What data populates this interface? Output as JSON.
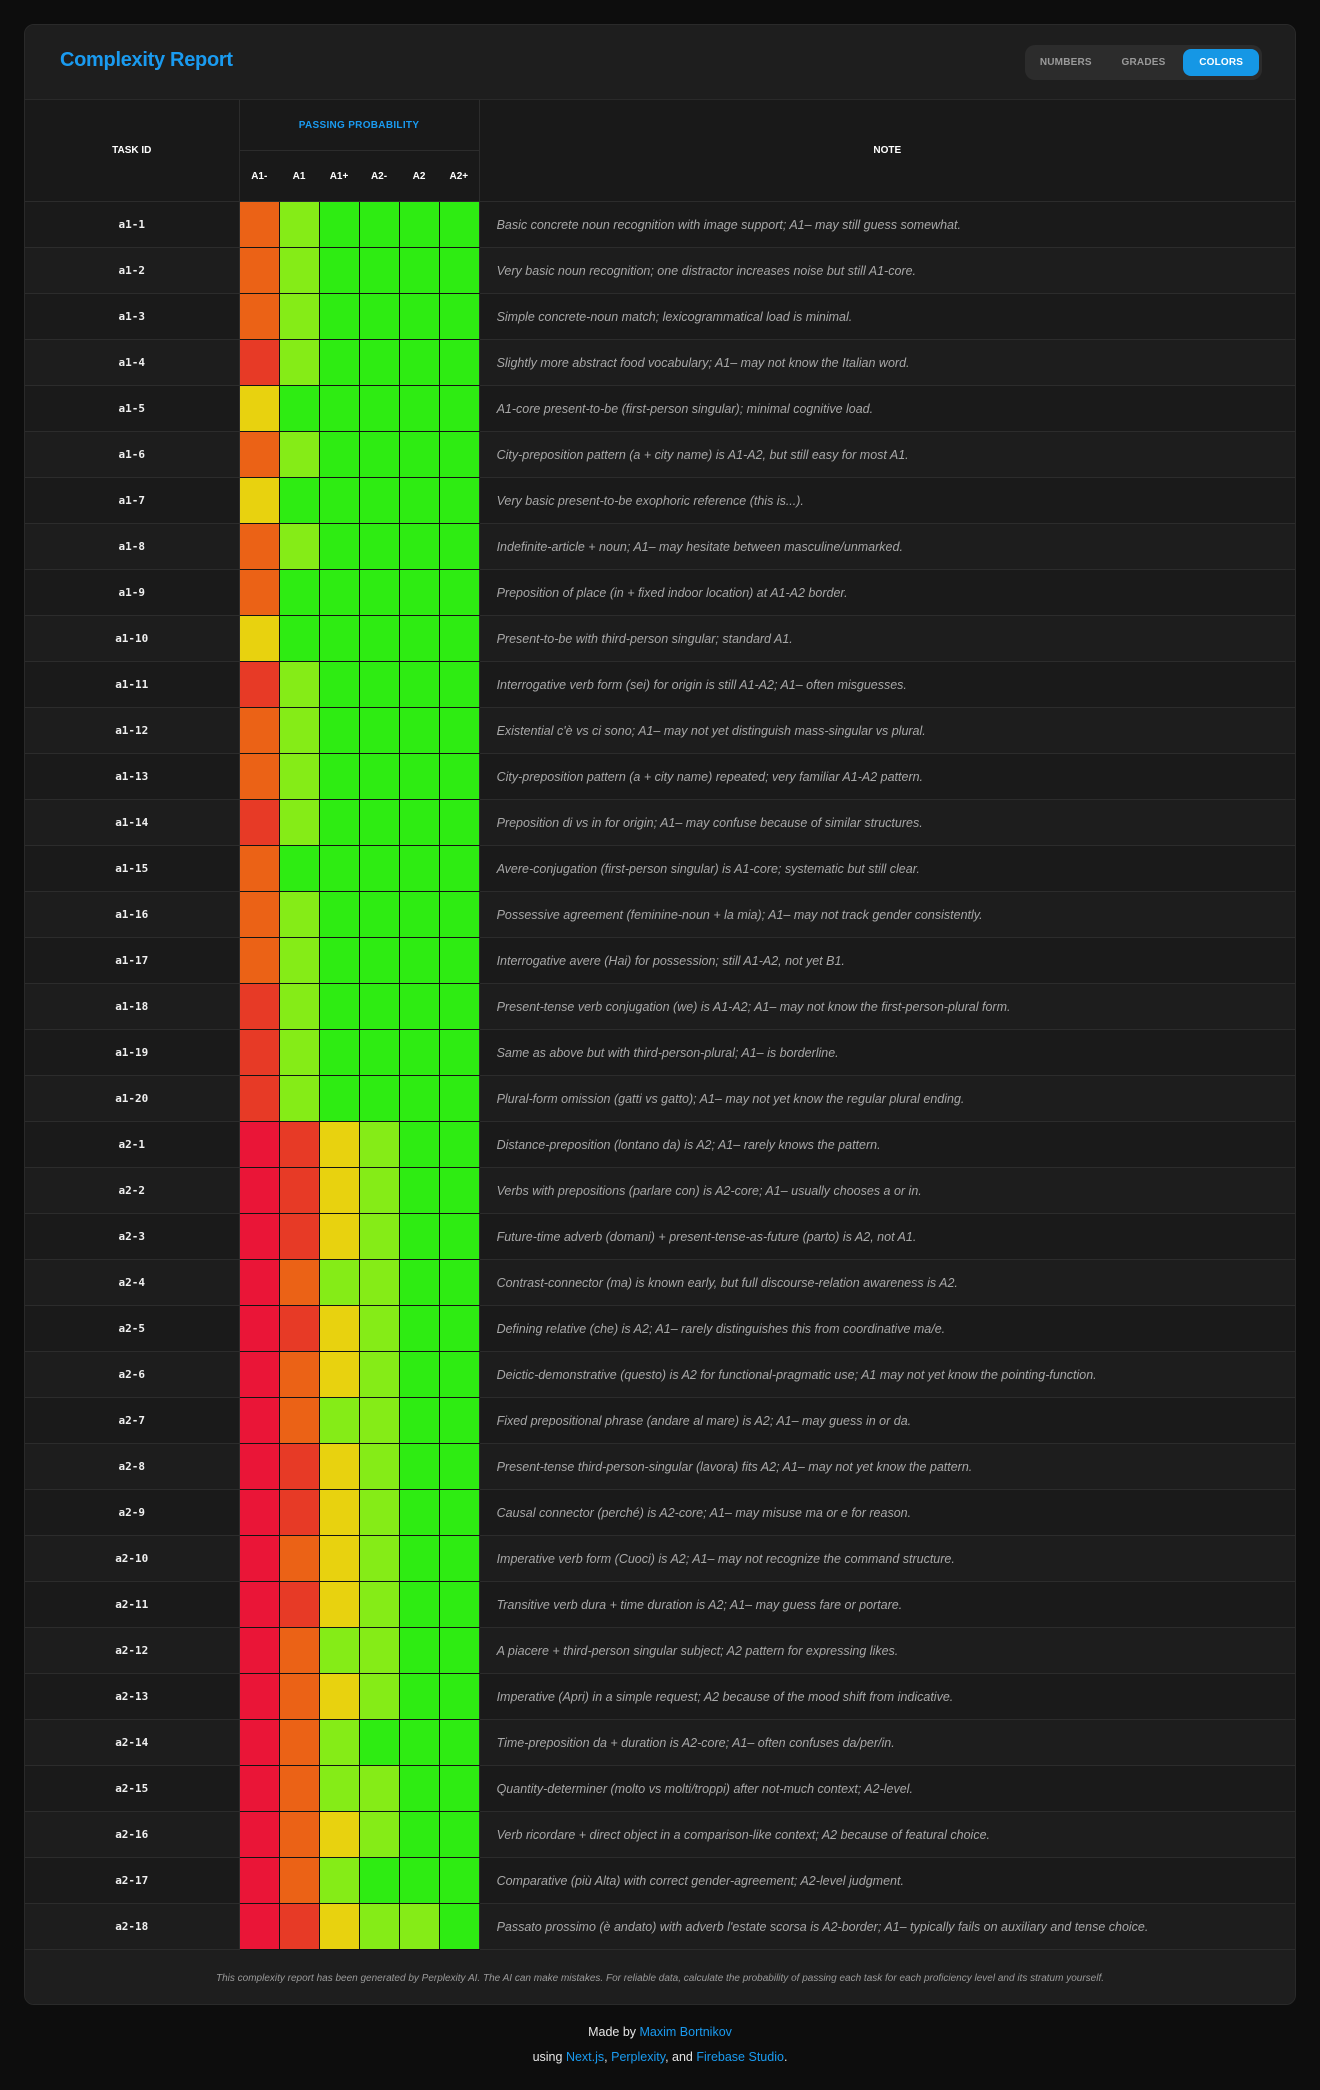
{
  "header": {
    "title": "Complexity Report",
    "view_options": [
      "NUMBERS",
      "GRADES",
      "COLORS"
    ],
    "active_view": "COLORS"
  },
  "table": {
    "task_id_header": "TASK ID",
    "group_header": "PASSING PROBABILITY",
    "levels": [
      "A1-",
      "A1",
      "A1+",
      "A2-",
      "A2",
      "A2+"
    ],
    "note_header": "NOTE"
  },
  "color_scale": {
    "crimson": "#ea1537",
    "red": "#e73a26",
    "orange": "#eb6216",
    "yellow": "#e8d20f",
    "lime": "#85ec17",
    "green": "#2eec12"
  },
  "rows": [
    {
      "id": "a1-1",
      "colors": [
        "orange",
        "lime",
        "green",
        "green",
        "green",
        "green"
      ],
      "note": "Basic concrete noun recognition with image support; A1– may still guess somewhat."
    },
    {
      "id": "a1-2",
      "colors": [
        "orange",
        "lime",
        "green",
        "green",
        "green",
        "green"
      ],
      "note": "Very basic noun recognition; one distractor increases noise but still A1-core."
    },
    {
      "id": "a1-3",
      "colors": [
        "orange",
        "lime",
        "green",
        "green",
        "green",
        "green"
      ],
      "note": "Simple concrete-noun match; lexicogrammatical load is minimal."
    },
    {
      "id": "a1-4",
      "colors": [
        "red",
        "lime",
        "green",
        "green",
        "green",
        "green"
      ],
      "note": "Slightly more abstract food vocabulary; A1– may not know the Italian word."
    },
    {
      "id": "a1-5",
      "colors": [
        "yellow",
        "green",
        "green",
        "green",
        "green",
        "green"
      ],
      "note": "A1-core present-to-be (first-person singular); minimal cognitive load."
    },
    {
      "id": "a1-6",
      "colors": [
        "orange",
        "lime",
        "green",
        "green",
        "green",
        "green"
      ],
      "note": "City-preposition pattern (a + city name) is A1-A2, but still easy for most A1."
    },
    {
      "id": "a1-7",
      "colors": [
        "yellow",
        "green",
        "green",
        "green",
        "green",
        "green"
      ],
      "note": "Very basic present-to-be exophoric reference (this is...)."
    },
    {
      "id": "a1-8",
      "colors": [
        "orange",
        "lime",
        "green",
        "green",
        "green",
        "green"
      ],
      "note": "Indefinite-article + noun; A1– may hesitate between masculine/unmarked."
    },
    {
      "id": "a1-9",
      "colors": [
        "orange",
        "green",
        "green",
        "green",
        "green",
        "green"
      ],
      "note": "Preposition of place (in + fixed indoor location) at A1-A2 border."
    },
    {
      "id": "a1-10",
      "colors": [
        "yellow",
        "green",
        "green",
        "green",
        "green",
        "green"
      ],
      "note": "Present-to-be with third-person singular; standard A1."
    },
    {
      "id": "a1-11",
      "colors": [
        "red",
        "lime",
        "green",
        "green",
        "green",
        "green"
      ],
      "note": "Interrogative verb form (sei) for origin is still A1-A2; A1– often misguesses."
    },
    {
      "id": "a1-12",
      "colors": [
        "orange",
        "lime",
        "green",
        "green",
        "green",
        "green"
      ],
      "note": "Existential c'è vs ci sono; A1– may not yet distinguish mass-singular vs plural."
    },
    {
      "id": "a1-13",
      "colors": [
        "orange",
        "lime",
        "green",
        "green",
        "green",
        "green"
      ],
      "note": "City-preposition pattern (a + city name) repeated; very familiar A1-A2 pattern."
    },
    {
      "id": "a1-14",
      "colors": [
        "red",
        "lime",
        "green",
        "green",
        "green",
        "green"
      ],
      "note": "Preposition di vs in for origin; A1– may confuse because of similar structures."
    },
    {
      "id": "a1-15",
      "colors": [
        "orange",
        "green",
        "green",
        "green",
        "green",
        "green"
      ],
      "note": "Avere-conjugation (first-person singular) is A1-core; systematic but still clear."
    },
    {
      "id": "a1-16",
      "colors": [
        "orange",
        "lime",
        "green",
        "green",
        "green",
        "green"
      ],
      "note": "Possessive agreement (feminine-noun + la mia); A1– may not track gender consistently."
    },
    {
      "id": "a1-17",
      "colors": [
        "orange",
        "lime",
        "green",
        "green",
        "green",
        "green"
      ],
      "note": "Interrogative avere (Hai) for possession; still A1-A2, not yet B1."
    },
    {
      "id": "a1-18",
      "colors": [
        "red",
        "lime",
        "green",
        "green",
        "green",
        "green"
      ],
      "note": "Present-tense verb conjugation (we) is A1-A2; A1– may not know the first-person-plural form."
    },
    {
      "id": "a1-19",
      "colors": [
        "red",
        "lime",
        "green",
        "green",
        "green",
        "green"
      ],
      "note": "Same as above but with third-person-plural; A1– is borderline."
    },
    {
      "id": "a1-20",
      "colors": [
        "red",
        "lime",
        "green",
        "green",
        "green",
        "green"
      ],
      "note": "Plural-form omission (gatti vs gatto); A1– may not yet know the regular plural ending."
    },
    {
      "id": "a2-1",
      "colors": [
        "crimson",
        "red",
        "yellow",
        "lime",
        "green",
        "green"
      ],
      "note": "Distance-preposition (lontano da) is A2; A1– rarely knows the pattern."
    },
    {
      "id": "a2-2",
      "colors": [
        "crimson",
        "red",
        "yellow",
        "lime",
        "green",
        "green"
      ],
      "note": "Verbs with prepositions (parlare con) is A2-core; A1– usually chooses a or in."
    },
    {
      "id": "a2-3",
      "colors": [
        "crimson",
        "red",
        "yellow",
        "lime",
        "green",
        "green"
      ],
      "note": "Future-time adverb (domani) + present-tense-as-future (parto) is A2, not A1."
    },
    {
      "id": "a2-4",
      "colors": [
        "crimson",
        "orange",
        "lime",
        "lime",
        "green",
        "green"
      ],
      "note": "Contrast-connector (ma) is known early, but full discourse-relation awareness is A2."
    },
    {
      "id": "a2-5",
      "colors": [
        "crimson",
        "red",
        "yellow",
        "lime",
        "green",
        "green"
      ],
      "note": "Defining relative (che) is A2; A1– rarely distinguishes this from coordinative ma/e."
    },
    {
      "id": "a2-6",
      "colors": [
        "crimson",
        "orange",
        "yellow",
        "lime",
        "green",
        "green"
      ],
      "note": "Deictic-demonstrative (questo) is A2 for functional-pragmatic use; A1 may not yet know the pointing-function."
    },
    {
      "id": "a2-7",
      "colors": [
        "crimson",
        "orange",
        "lime",
        "lime",
        "green",
        "green"
      ],
      "note": "Fixed prepositional phrase (andare al mare) is A2; A1– may guess in or da."
    },
    {
      "id": "a2-8",
      "colors": [
        "crimson",
        "red",
        "yellow",
        "lime",
        "green",
        "green"
      ],
      "note": "Present-tense third-person-singular (lavora) fits A2; A1– may not yet know the pattern."
    },
    {
      "id": "a2-9",
      "colors": [
        "crimson",
        "red",
        "yellow",
        "lime",
        "green",
        "green"
      ],
      "note": "Causal connector (perché) is A2-core; A1– may misuse ma or e for reason."
    },
    {
      "id": "a2-10",
      "colors": [
        "crimson",
        "orange",
        "yellow",
        "lime",
        "green",
        "green"
      ],
      "note": "Imperative verb form (Cuoci) is A2; A1– may not recognize the command structure."
    },
    {
      "id": "a2-11",
      "colors": [
        "crimson",
        "red",
        "yellow",
        "lime",
        "green",
        "green"
      ],
      "note": "Transitive verb dura + time duration is A2; A1– may guess fare or portare."
    },
    {
      "id": "a2-12",
      "colors": [
        "crimson",
        "orange",
        "lime",
        "lime",
        "green",
        "green"
      ],
      "note": "A piacere + third-person singular subject; A2 pattern for expressing likes."
    },
    {
      "id": "a2-13",
      "colors": [
        "crimson",
        "orange",
        "yellow",
        "lime",
        "green",
        "green"
      ],
      "note": "Imperative (Apri) in a simple request; A2 because of the mood shift from indicative."
    },
    {
      "id": "a2-14",
      "colors": [
        "crimson",
        "orange",
        "lime",
        "green",
        "green",
        "green"
      ],
      "note": "Time-preposition da + duration is A2-core; A1– often confuses da/per/in."
    },
    {
      "id": "a2-15",
      "colors": [
        "crimson",
        "orange",
        "lime",
        "lime",
        "green",
        "green"
      ],
      "note": "Quantity-determiner (molto vs molti/troppi) after not-much context; A2-level."
    },
    {
      "id": "a2-16",
      "colors": [
        "crimson",
        "orange",
        "yellow",
        "lime",
        "green",
        "green"
      ],
      "note": "Verb ricordare + direct object in a comparison-like context; A2 because of featural choice."
    },
    {
      "id": "a2-17",
      "colors": [
        "crimson",
        "orange",
        "lime",
        "green",
        "green",
        "green"
      ],
      "note": "Comparative (più Alta) with correct gender-agreement; A2-level judgment."
    },
    {
      "id": "a2-18",
      "colors": [
        "crimson",
        "red",
        "yellow",
        "lime",
        "lime",
        "green"
      ],
      "note": "Passato prossimo (è andato) with adverb l'estate scorsa is A2-border; A1– typically fails on auxiliary and tense choice."
    }
  ],
  "disclaimer": "This complexity report has been generated by Perplexity AI. The AI can make mistakes. For reliable data, calculate the probability of passing each task for each proficiency level and its stratum yourself.",
  "credits": {
    "made_by_prefix": "Made by",
    "author": "Maxim Bortnikov",
    "using_prefix": "using",
    "tool1": "Next.js",
    "comma": ",",
    "tool2": "Perplexity",
    "and": ", and",
    "tool3": "Firebase Studio",
    "period": "."
  }
}
